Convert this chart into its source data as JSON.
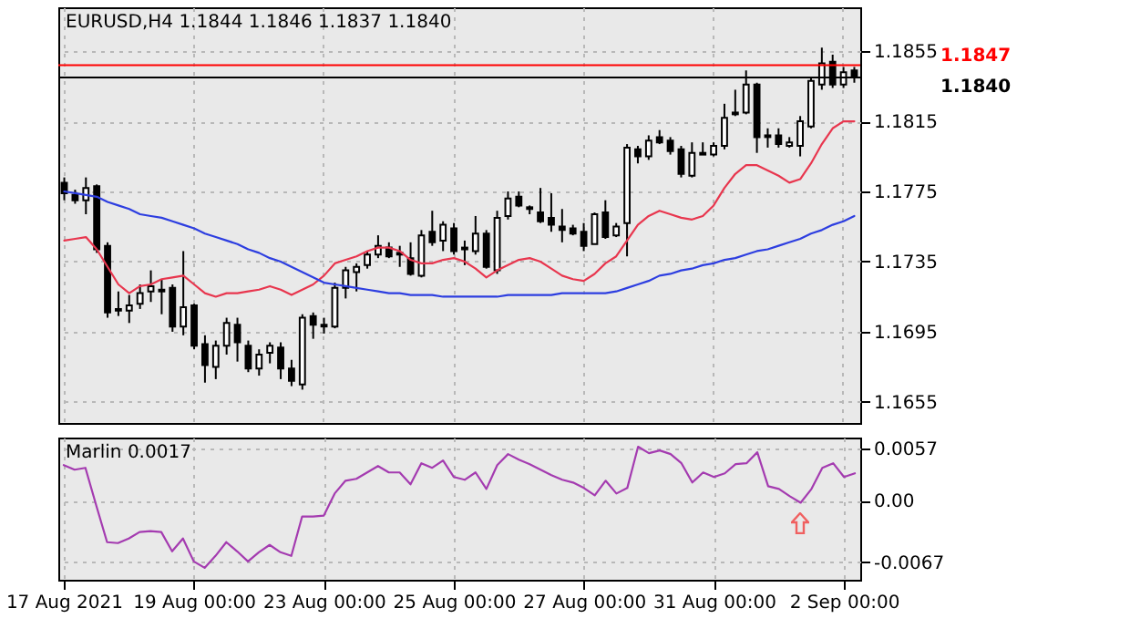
{
  "chart_data": [
    {
      "type": "candlestick",
      "title": "EURUSD,H4  1.1844 1.1846 1.1837 1.1840",
      "categories": [
        null,
        null,
        null,
        null,
        null,
        null,
        null,
        null,
        null,
        null,
        null,
        null,
        null,
        null,
        null,
        null,
        null,
        null,
        null,
        null,
        null,
        null,
        null,
        null,
        null,
        null,
        null,
        null,
        null,
        null,
        null,
        null,
        null,
        null,
        null,
        null,
        null,
        null,
        null,
        null,
        null,
        null,
        null,
        null,
        null,
        null,
        null,
        null,
        null,
        null,
        null,
        null,
        null,
        null,
        null,
        null,
        null,
        null,
        null,
        null,
        null,
        null,
        null,
        null,
        null,
        null,
        null,
        null,
        null,
        null,
        null,
        null,
        null,
        null
      ],
      "ohlc": [
        [
          1.178,
          1.1783,
          1.177,
          1.1774
        ],
        [
          1.1773,
          1.1776,
          1.1768,
          1.177
        ],
        [
          1.177,
          1.1783,
          1.1762,
          1.1777
        ],
        [
          1.1778,
          1.1779,
          1.174,
          1.1742
        ],
        [
          1.1744,
          1.1746,
          1.1703,
          1.1706
        ],
        [
          1.1708,
          1.1718,
          1.1704,
          1.1707
        ],
        [
          1.1707,
          1.1716,
          1.17,
          1.171
        ],
        [
          1.1711,
          1.1722,
          1.1708,
          1.1717
        ],
        [
          1.1718,
          1.173,
          1.1712,
          1.1721
        ],
        [
          1.1719,
          1.1725,
          1.1705,
          1.1718
        ],
        [
          1.172,
          1.1722,
          1.1695,
          1.1698
        ],
        [
          1.1698,
          1.1741,
          1.1693,
          1.1709
        ],
        [
          1.171,
          1.1711,
          1.1685,
          1.1687
        ],
        [
          1.1688,
          1.1693,
          1.1666,
          1.1676
        ],
        [
          1.1675,
          1.169,
          1.1668,
          1.1687
        ],
        [
          1.1687,
          1.1703,
          1.1682,
          1.17
        ],
        [
          1.1699,
          1.1703,
          1.1678,
          1.1689
        ],
        [
          1.1687,
          1.169,
          1.1672,
          1.1674
        ],
        [
          1.1674,
          1.1685,
          1.167,
          1.1682
        ],
        [
          1.1683,
          1.1689,
          1.1677,
          1.1687
        ],
        [
          1.1686,
          1.1689,
          1.1668,
          1.1674
        ],
        [
          1.1674,
          1.1679,
          1.1664,
          1.1667
        ],
        [
          1.1665,
          1.1705,
          1.1662,
          1.1703
        ],
        [
          1.1704,
          1.1706,
          1.1691,
          1.1699
        ],
        [
          1.1699,
          1.1703,
          1.1694,
          1.1698
        ],
        [
          1.1698,
          1.1723,
          1.1697,
          1.172
        ],
        [
          1.172,
          1.1732,
          1.1714,
          1.173
        ],
        [
          1.1729,
          1.1734,
          1.1718,
          1.1732
        ],
        [
          1.1733,
          1.1741,
          1.1731,
          1.1739
        ],
        [
          1.1739,
          1.175,
          1.1737,
          1.1744
        ],
        [
          1.1743,
          1.1746,
          1.1737,
          1.1738
        ],
        [
          1.174,
          1.1744,
          1.1732,
          1.1739
        ],
        [
          1.1737,
          1.1746,
          1.1727,
          1.1728
        ],
        [
          1.1727,
          1.1753,
          1.1726,
          1.175
        ],
        [
          1.1752,
          1.1764,
          1.1744,
          1.1746
        ],
        [
          1.1747,
          1.1758,
          1.1741,
          1.1756
        ],
        [
          1.1754,
          1.1757,
          1.1739,
          1.1741
        ],
        [
          1.1742,
          1.1747,
          1.1733,
          1.1743
        ],
        [
          1.1741,
          1.1761,
          1.1739,
          1.1751
        ],
        [
          1.1751,
          1.1753,
          1.1731,
          1.1732
        ],
        [
          1.173,
          1.1764,
          1.1728,
          1.176
        ],
        [
          1.1761,
          1.1775,
          1.1759,
          1.1771
        ],
        [
          1.1772,
          1.1775,
          1.1766,
          1.1767
        ],
        [
          1.1766,
          1.1767,
          1.1762,
          1.1765
        ],
        [
          1.1763,
          1.1777,
          1.1757,
          1.1758
        ],
        [
          1.176,
          1.1774,
          1.1752,
          1.1756
        ],
        [
          1.1755,
          1.1765,
          1.1746,
          1.1753
        ],
        [
          1.1754,
          1.1756,
          1.175,
          1.1751
        ],
        [
          1.1752,
          1.1757,
          1.1741,
          1.1744
        ],
        [
          1.1745,
          1.1763,
          1.1745,
          1.1762
        ],
        [
          1.1763,
          1.177,
          1.1748,
          1.1749
        ],
        [
          1.175,
          1.1757,
          1.1749,
          1.1755
        ],
        [
          1.1757,
          1.1802,
          1.1738,
          1.18
        ],
        [
          1.1799,
          1.1801,
          1.1791,
          1.1795
        ],
        [
          1.1795,
          1.1807,
          1.1793,
          1.1804
        ],
        [
          1.1806,
          1.181,
          1.1802,
          1.1803
        ],
        [
          1.1804,
          1.1806,
          1.1796,
          1.1798
        ],
        [
          1.1799,
          1.1801,
          1.1783,
          1.1785
        ],
        [
          1.1784,
          1.1803,
          1.1783,
          1.1797
        ],
        [
          1.1797,
          1.1803,
          1.1796,
          1.1796
        ],
        [
          1.1796,
          1.1803,
          1.1795,
          1.1801
        ],
        [
          1.1801,
          1.1825,
          1.1799,
          1.1817
        ],
        [
          1.1819,
          1.1833,
          1.1818,
          1.182
        ],
        [
          1.182,
          1.1844,
          1.1819,
          1.1836
        ],
        [
          1.1836,
          1.1837,
          1.1797,
          1.1806
        ],
        [
          1.1806,
          1.1811,
          1.18,
          1.1807
        ],
        [
          1.1807,
          1.1811,
          1.18,
          1.1802
        ],
        [
          1.1801,
          1.1806,
          1.18,
          1.1803
        ],
        [
          1.1801,
          1.1818,
          1.1795,
          1.1815
        ],
        [
          1.1812,
          1.184,
          1.1811,
          1.1838
        ],
        [
          1.1836,
          1.1857,
          1.1833,
          1.1848
        ],
        [
          1.1849,
          1.1853,
          1.1834,
          1.1836
        ],
        [
          1.1836,
          1.1846,
          1.1834,
          1.1843
        ],
        [
          1.1844,
          1.1846,
          1.1837,
          1.184
        ]
      ],
      "series": [
        {
          "type": "line",
          "color": "#e8364e",
          "values": [
            1.1747,
            1.1748,
            1.1749,
            1.1742,
            1.1732,
            1.1722,
            1.1717,
            1.1721,
            1.1722,
            1.1725,
            1.1726,
            1.1727,
            1.1722,
            1.1717,
            1.1715,
            1.1717,
            1.1717,
            1.1718,
            1.1719,
            1.1721,
            1.1719,
            1.1716,
            1.1719,
            1.1722,
            1.1727,
            1.1734,
            1.1736,
            1.1738,
            1.1741,
            1.1743,
            1.1743,
            1.1741,
            1.1736,
            1.1734,
            1.1734,
            1.1736,
            1.1737,
            1.1735,
            1.1731,
            1.1726,
            1.173,
            1.1733,
            1.1736,
            1.1737,
            1.1735,
            1.1731,
            1.1727,
            1.1725,
            1.1724,
            1.1728,
            1.1734,
            1.1738,
            1.1747,
            1.1756,
            1.1761,
            1.1764,
            1.1762,
            1.176,
            1.1759,
            1.1761,
            1.1767,
            1.1777,
            1.1785,
            1.179,
            1.179,
            1.1787,
            1.1784,
            1.178,
            1.1782,
            1.1791,
            1.1802,
            1.1811,
            1.1815,
            1.1815
          ]
        },
        {
          "type": "line",
          "color": "#2d3ee0",
          "values": [
            1.1775,
            1.1774,
            1.1773,
            1.1772,
            1.1769,
            1.1767,
            1.1765,
            1.1762,
            1.1761,
            1.176,
            1.1758,
            1.1756,
            1.1754,
            1.1751,
            1.1749,
            1.1747,
            1.1745,
            1.1742,
            1.174,
            1.1737,
            1.1735,
            1.1732,
            1.1729,
            1.1726,
            1.1723,
            1.1722,
            1.1721,
            1.172,
            1.1719,
            1.1718,
            1.1717,
            1.1717,
            1.1716,
            1.1716,
            1.1716,
            1.1715,
            1.1715,
            1.1715,
            1.1715,
            1.1715,
            1.1715,
            1.1716,
            1.1716,
            1.1716,
            1.1716,
            1.1716,
            1.1717,
            1.1717,
            1.1717,
            1.1717,
            1.1717,
            1.1718,
            1.172,
            1.1722,
            1.1724,
            1.1727,
            1.1728,
            1.173,
            1.1731,
            1.1733,
            1.1734,
            1.1736,
            1.1737,
            1.1739,
            1.1741,
            1.1742,
            1.1744,
            1.1746,
            1.1748,
            1.1751,
            1.1753,
            1.1756,
            1.1758,
            1.1761
          ]
        }
      ],
      "ylim": [
        1.1643,
        1.188
      ],
      "yticks": [
        1.1655,
        1.1695,
        1.1735,
        1.1775,
        1.1815,
        1.1855
      ],
      "ref_lines": [
        {
          "axis": "y",
          "value": 1.1847,
          "label": "1.1847",
          "color": "#ff0000"
        },
        {
          "axis": "y",
          "value": 1.184,
          "label": "1.1840",
          "color": "#000000"
        }
      ],
      "grid": true,
      "tick_labels": "y"
    },
    {
      "type": "line",
      "title": "Marlin 0.0017",
      "categories": [
        "17 Aug 2021",
        null,
        null,
        null,
        null,
        null,
        null,
        null,
        null,
        null,
        null,
        null,
        "19 Aug 00:00",
        null,
        null,
        null,
        null,
        null,
        null,
        null,
        null,
        null,
        null,
        null,
        "23 Aug 00:00",
        null,
        null,
        null,
        null,
        null,
        null,
        null,
        null,
        null,
        null,
        null,
        "25 Aug 00:00",
        null,
        null,
        null,
        null,
        null,
        null,
        null,
        null,
        null,
        null,
        null,
        "27 Aug 00:00",
        null,
        null,
        null,
        null,
        null,
        null,
        null,
        null,
        null,
        null,
        null,
        "31 Aug 00:00",
        null,
        null,
        null,
        null,
        null,
        null,
        null,
        null,
        null,
        null,
        null,
        "2 Sep 00:00",
        null
      ],
      "series": [
        {
          "color": "#a43bb0",
          "values": [
            0.0039,
            0.0034,
            0.0036,
            -0.0005,
            -0.0045,
            -0.0046,
            -0.0041,
            -0.0034,
            -0.0033,
            -0.0034,
            -0.0055,
            -0.0041,
            -0.0066,
            -0.0073,
            -0.006,
            -0.0045,
            -0.0055,
            -0.0066,
            -0.0056,
            -0.0048,
            -0.0056,
            -0.006,
            -0.0017,
            -0.0017,
            -0.0016,
            0.0008,
            0.0022,
            0.0024,
            0.0031,
            0.0038,
            0.0031,
            0.0031,
            0.0018,
            0.0041,
            0.0036,
            0.0044,
            0.0026,
            0.0023,
            0.0031,
            0.0013,
            0.0039,
            0.0051,
            0.0045,
            0.004,
            0.0034,
            0.0028,
            0.0023,
            0.002,
            0.0014,
            0.0006,
            0.0022,
            0.0008,
            0.0014,
            0.0059,
            0.0052,
            0.0055,
            0.0051,
            0.0041,
            0.002,
            0.0031,
            0.0026,
            0.003,
            0.004,
            0.0041,
            0.0053,
            0.0016,
            0.0013,
            0.0005,
            -0.0002,
            0.0013,
            0.0036,
            0.0041,
            0.0026,
            0.003
          ]
        }
      ],
      "ylim": [
        -0.0086,
        0.0069
      ],
      "yticks": [
        0.0057,
        {
          "value": 0,
          "label": "0.00"
        },
        -0.0067
      ],
      "grid": true
    }
  ]
}
